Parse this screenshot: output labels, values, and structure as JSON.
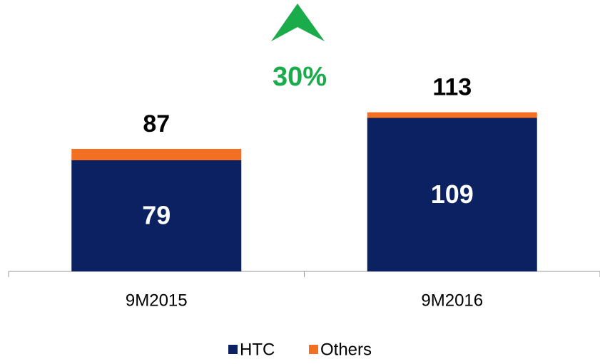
{
  "chart_data": {
    "type": "stacked_bar",
    "categories": [
      "9M2015",
      "9M2016"
    ],
    "series": [
      {
        "name": "HTC",
        "color": "#0b2161",
        "values": [
          79,
          109
        ]
      },
      {
        "name": "Others",
        "color": "#f36f21",
        "values": [
          8,
          4
        ]
      }
    ],
    "totals": [
      87,
      113
    ],
    "annotation": "30%",
    "annotation_color": "#1aab4b",
    "ylim": [
      0,
      130
    ],
    "legend": "bottom"
  }
}
